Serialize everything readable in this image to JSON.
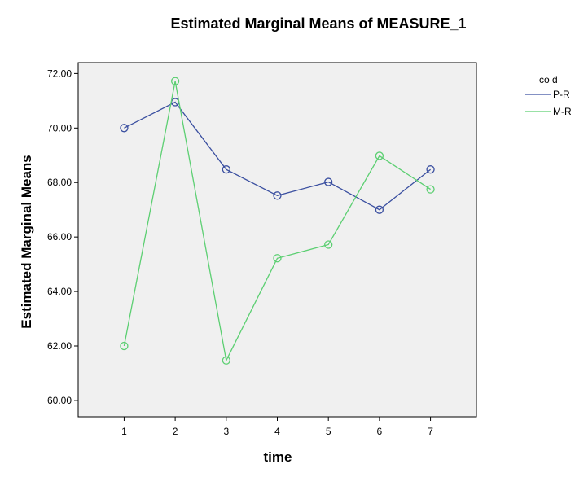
{
  "chart_data": {
    "type": "line",
    "title": "Estimated Marginal Means of MEASURE_1",
    "xlabel": "time",
    "ylabel": "Estimated Marginal Means",
    "x": [
      1,
      2,
      3,
      4,
      5,
      6,
      7
    ],
    "x_tick_labels": [
      "1",
      "2",
      "3",
      "4",
      "5",
      "6",
      "7"
    ],
    "y_tick_labels": [
      "60.00",
      "62.00",
      "64.00",
      "66.00",
      "68.00",
      "70.00",
      "72.00"
    ],
    "ylim": [
      59.4,
      72.4
    ],
    "xlim": [
      0.1,
      7.9
    ],
    "grid": false,
    "plot_background": "#f0f0f0",
    "legend": {
      "title": "co d",
      "position": "top-right"
    },
    "series": [
      {
        "name": "P-R",
        "color": "#3a4fa0",
        "values": [
          70.0,
          70.95,
          68.48,
          67.52,
          68.02,
          67.0,
          68.48
        ]
      },
      {
        "name": "M-R",
        "color": "#5ccf72",
        "values": [
          62.0,
          71.72,
          61.47,
          65.22,
          65.72,
          68.98,
          67.75
        ]
      }
    ]
  }
}
